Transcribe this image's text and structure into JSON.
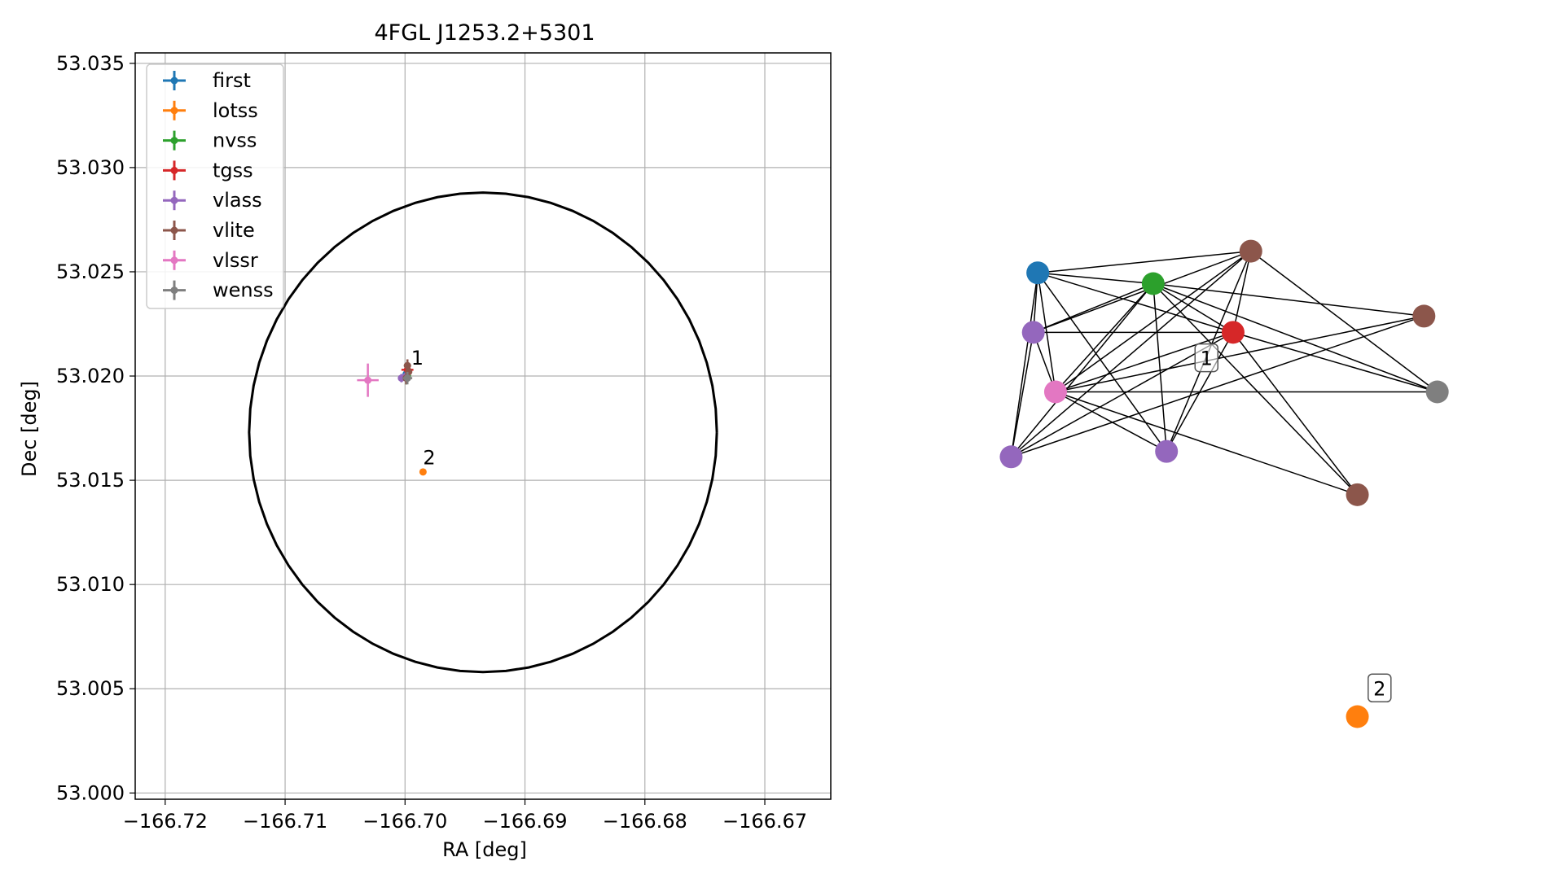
{
  "chart_data": [
    {
      "type": "scatter",
      "title": "4FGL J1253.2+5301",
      "xlabel": "RA [deg]",
      "ylabel": "Dec [deg]",
      "xlim": [
        -166.7225,
        -166.6645
      ],
      "ylim": [
        52.9997,
        53.0355
      ],
      "xticks": [
        -166.72,
        -166.71,
        -166.7,
        -166.69,
        -166.68,
        -166.67
      ],
      "xtick_labels": [
        "−166.72",
        "−166.71",
        "−166.70",
        "−166.69",
        "−166.68",
        "−166.67"
      ],
      "yticks": [
        53.0,
        53.005,
        53.01,
        53.015,
        53.02,
        53.025,
        53.03,
        53.035
      ],
      "ytick_labels": [
        "53.000",
        "53.005",
        "53.010",
        "53.015",
        "53.020",
        "53.025",
        "53.030",
        "53.035"
      ],
      "grid": true,
      "legend_position": "top-left",
      "ellipse": {
        "center_ra": -166.6935,
        "center_dec": 53.0173,
        "radius_ra": 0.0195,
        "radius_dec": 0.0115,
        "color": "#000000"
      },
      "series": [
        {
          "name": "first",
          "color": "#1f77b4",
          "points": [
            {
              "ra": -166.6999,
              "dec": 53.0201,
              "ra_err": 0.0003,
              "dec_err": 0.0003
            }
          ]
        },
        {
          "name": "lotss",
          "color": "#ff7f0e",
          "points": [
            {
              "ra": -166.6985,
              "dec": 53.0154,
              "ra_err": 0.0001,
              "dec_err": 0.0001
            }
          ]
        },
        {
          "name": "nvss",
          "color": "#2ca02c",
          "points": [
            {
              "ra": -166.6999,
              "dec": 53.02,
              "ra_err": 0.0004,
              "dec_err": 0.0004
            }
          ]
        },
        {
          "name": "tgss",
          "color": "#d62728",
          "points": [
            {
              "ra": -166.6998,
              "dec": 53.0203,
              "ra_err": 0.0005,
              "dec_err": 0.0005
            }
          ]
        },
        {
          "name": "vlass",
          "color": "#9467bd",
          "points": [
            {
              "ra": -166.7003,
              "dec": 53.0199,
              "ra_err": 0.0002,
              "dec_err": 0.0002
            },
            {
              "ra": -166.6999,
              "dec": 53.02,
              "ra_err": 0.0002,
              "dec_err": 0.0002
            }
          ]
        },
        {
          "name": "vlite",
          "color": "#8c564b",
          "points": [
            {
              "ra": -166.6998,
              "dec": 53.0205,
              "ra_err": 0.0003,
              "dec_err": 0.0003
            },
            {
              "ra": -166.6997,
              "dec": 53.0202,
              "ra_err": 0.0003,
              "dec_err": 0.0003
            },
            {
              "ra": -166.6999,
              "dec": 53.0199,
              "ra_err": 0.0003,
              "dec_err": 0.0003
            }
          ]
        },
        {
          "name": "vlssr",
          "color": "#e377c2",
          "points": [
            {
              "ra": -166.7031,
              "dec": 53.0198,
              "ra_err": 0.0009,
              "dec_err": 0.0008
            }
          ]
        },
        {
          "name": "wenss",
          "color": "#7f7f7f",
          "points": [
            {
              "ra": -166.6998,
              "dec": 53.0199,
              "ra_err": 0.0004,
              "dec_err": 0.0003
            }
          ]
        }
      ],
      "annotations": [
        {
          "text": "1",
          "ra": -166.6997,
          "dec": 53.0204,
          "color": "#000000"
        },
        {
          "text": "2",
          "ra": -166.6987,
          "dec": 53.0156,
          "color": "#000000"
        }
      ]
    },
    {
      "type": "network",
      "nodes": [
        {
          "id": "first",
          "color": "#1f77b4",
          "x": 0.07,
          "y": 0.92
        },
        {
          "id": "nvss",
          "color": "#2ca02c",
          "x": 0.33,
          "y": 0.9
        },
        {
          "id": "vlite_a",
          "color": "#8c564b",
          "x": 0.55,
          "y": 0.96
        },
        {
          "id": "vlite_b",
          "color": "#8c564b",
          "x": 0.94,
          "y": 0.84
        },
        {
          "id": "vlass_a",
          "color": "#9467bd",
          "x": 0.06,
          "y": 0.81
        },
        {
          "id": "tgss",
          "color": "#d62728",
          "x": 0.51,
          "y": 0.81
        },
        {
          "id": "vlssr",
          "color": "#e377c2",
          "x": 0.11,
          "y": 0.7
        },
        {
          "id": "wenss",
          "color": "#7f7f7f",
          "x": 0.97,
          "y": 0.7
        },
        {
          "id": "vlass_b",
          "color": "#9467bd",
          "x": 0.01,
          "y": 0.58
        },
        {
          "id": "vlass_c",
          "color": "#9467bd",
          "x": 0.36,
          "y": 0.59
        },
        {
          "id": "vlite_c",
          "color": "#8c564b",
          "x": 0.79,
          "y": 0.51
        },
        {
          "id": "lotss",
          "color": "#ff7f0e",
          "x": 0.79,
          "y": 0.1
        }
      ],
      "edges": [
        [
          "first",
          "vlite_a"
        ],
        [
          "first",
          "nvss"
        ],
        [
          "first",
          "vlass_a"
        ],
        [
          "first",
          "vlssr"
        ],
        [
          "first",
          "vlass_b"
        ],
        [
          "first",
          "tgss"
        ],
        [
          "first",
          "vlass_c"
        ],
        [
          "nvss",
          "vlite_b"
        ],
        [
          "nvss",
          "vlass_a"
        ],
        [
          "nvss",
          "vlssr"
        ],
        [
          "nvss",
          "vlass_b"
        ],
        [
          "nvss",
          "vlass_c"
        ],
        [
          "nvss",
          "tgss"
        ],
        [
          "nvss",
          "wenss"
        ],
        [
          "nvss",
          "vlite_c"
        ],
        [
          "vlite_a",
          "vlass_a"
        ],
        [
          "vlite_a",
          "vlssr"
        ],
        [
          "vlite_a",
          "vlass_b"
        ],
        [
          "vlite_a",
          "tgss"
        ],
        [
          "vlite_a",
          "vlass_c"
        ],
        [
          "vlite_a",
          "wenss"
        ],
        [
          "vlass_a",
          "tgss"
        ],
        [
          "vlass_a",
          "vlssr"
        ],
        [
          "tgss",
          "vlssr"
        ],
        [
          "tgss",
          "vlass_b"
        ],
        [
          "tgss",
          "vlass_c"
        ],
        [
          "tgss",
          "wenss"
        ],
        [
          "tgss",
          "vlite_c"
        ],
        [
          "vlite_b",
          "vlssr"
        ],
        [
          "vlite_b",
          "vlass_b"
        ],
        [
          "vlssr",
          "wenss"
        ],
        [
          "vlssr",
          "vlass_c"
        ],
        [
          "vlssr",
          "vlite_c"
        ],
        [
          "vlass_a",
          "vlass_b"
        ]
      ],
      "labels": [
        {
          "text": "1",
          "node": "tgss",
          "dx": -0.06,
          "dy": -0.05
        },
        {
          "text": "2",
          "node": "lotss",
          "dx": 0.05,
          "dy": 0.05
        }
      ]
    }
  ]
}
